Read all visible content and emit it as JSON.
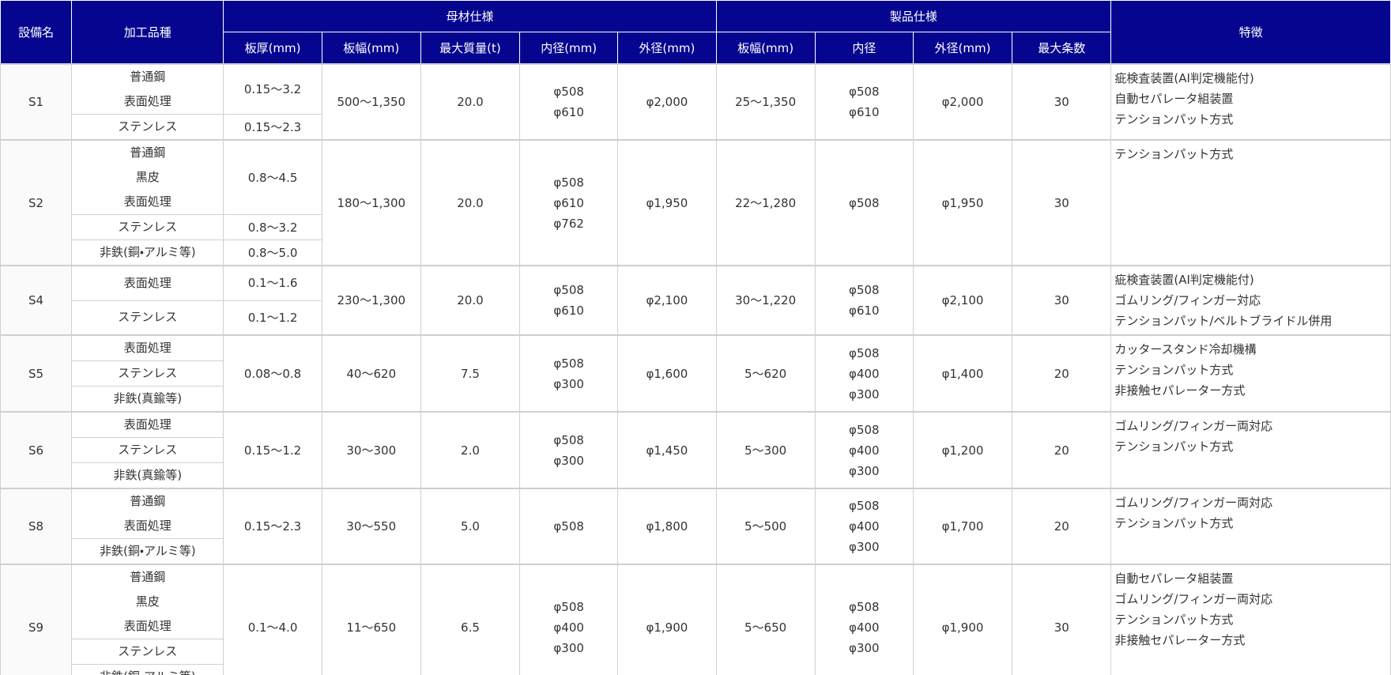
{
  "header": {
    "name": "設備名",
    "kind": "加工品種",
    "base": "母材仕様",
    "features": "特徴",
    "product": "製品仕様",
    "base_cols": [
      "板厚(mm)",
      "板幅(mm)",
      "最大質量(t)",
      "内径(mm)",
      "外径(mm)"
    ],
    "product_cols": [
      "板幅(mm)",
      "内径",
      "外径(mm)",
      "最大条数"
    ]
  },
  "rows": [
    {
      "name": "S1",
      "groups": [
        {
          "thickness": "0.15〜3.2",
          "kinds": [
            [
              "普通鋼",
              "表面処理"
            ]
          ]
        },
        {
          "thickness": "0.15〜2.3",
          "kinds": [
            [
              "ステンレス"
            ]
          ]
        }
      ],
      "width": "500〜1,350",
      "mass": "20.0",
      "inner": [
        "φ508",
        "φ610"
      ],
      "outer": "φ2,000",
      "p_width": "25〜1,350",
      "p_inner": [
        "φ508",
        "φ610"
      ],
      "p_outer": "φ2,000",
      "max": "30",
      "features": [
        "疵検査装置(AI判定機能付)",
        "自動セパレータ組装置",
        "テンションパット方式"
      ]
    },
    {
      "name": "S2",
      "groups": [
        {
          "thickness": "0.8〜4.5",
          "kinds": [
            [
              "普通鋼",
              "黒皮",
              "表面処理"
            ]
          ]
        },
        {
          "thickness": "0.8〜3.2",
          "kinds": [
            [
              "ステンレス"
            ]
          ]
        },
        {
          "thickness": "0.8〜5.0",
          "kinds": [
            [
              "非鉄(銅・アルミ等)"
            ]
          ]
        }
      ],
      "width": "180〜1,300",
      "mass": "20.0",
      "inner": [
        "φ508",
        "φ610",
        "φ762"
      ],
      "outer": "φ1,950",
      "p_width": "22〜1,280",
      "p_inner": [
        "φ508"
      ],
      "p_outer": "φ1,950",
      "max": "30",
      "features": [
        "テンションパット方式"
      ]
    },
    {
      "name": "S4",
      "groups": [
        {
          "thickness": "0.1〜1.6",
          "kinds": [
            [
              "表面処理"
            ]
          ]
        },
        {
          "thickness": "0.1〜1.2",
          "kinds": [
            [
              "ステンレス"
            ]
          ]
        }
      ],
      "width": "230〜1,300",
      "mass": "20.0",
      "inner": [
        "φ508",
        "φ610"
      ],
      "outer": "φ2,100",
      "p_width": "30〜1,220",
      "p_inner": [
        "φ508",
        "φ610"
      ],
      "p_outer": "φ2,100",
      "max": "30",
      "features": [
        "疵検査装置(AI判定機能付)",
        "ゴムリング/フィンガー対応",
        "テンションパット/ベルトブライドル併用"
      ]
    },
    {
      "name": "S5",
      "groups": [
        {
          "thickness": "0.08〜0.8",
          "kinds": [
            [
              "表面処理"
            ],
            [
              "ステンレス"
            ],
            [
              "非鉄(真鍮等)"
            ]
          ]
        }
      ],
      "width": "40〜620",
      "mass": "7.5",
      "inner": [
        "φ508",
        "φ300"
      ],
      "outer": "φ1,600",
      "p_width": "5〜620",
      "p_inner": [
        "φ508",
        "φ400",
        "φ300"
      ],
      "p_outer": "φ1,400",
      "max": "20",
      "features": [
        "カッタースタンド冷却機構",
        "テンションパット方式",
        "非接触セパレーター方式"
      ]
    },
    {
      "name": "S6",
      "groups": [
        {
          "thickness": "0.15〜1.2",
          "kinds": [
            [
              "表面処理"
            ],
            [
              "ステンレス"
            ],
            [
              "非鉄(真鍮等)"
            ]
          ]
        }
      ],
      "width": "30〜300",
      "mass": "2.0",
      "inner": [
        "φ508",
        "φ300"
      ],
      "outer": "φ1,450",
      "p_width": "5〜300",
      "p_inner": [
        "φ508",
        "φ400",
        "φ300"
      ],
      "p_outer": "φ1,200",
      "max": "20",
      "features": [
        "ゴムリング/フィンガー両対応",
        "テンションパット方式"
      ]
    },
    {
      "name": "S8",
      "groups": [
        {
          "thickness": "0.15〜2.3",
          "kinds": [
            [
              "普通鋼",
              "表面処理"
            ],
            [
              "非鉄(銅・アルミ等)"
            ]
          ]
        }
      ],
      "width": "30〜550",
      "mass": "5.0",
      "inner": [
        "φ508"
      ],
      "outer": "φ1,800",
      "p_width": "5〜500",
      "p_inner": [
        "φ508",
        "φ400",
        "φ300"
      ],
      "p_outer": "φ1,700",
      "max": "20",
      "features": [
        "ゴムリング/フィンガー両対応",
        "テンションパット方式"
      ]
    },
    {
      "name": "S9",
      "groups": [
        {
          "thickness": "0.1〜4.0",
          "kinds": [
            [
              "普通鋼",
              "黒皮",
              "表面処理"
            ],
            [
              "ステンレス"
            ],
            [
              "非鉄(銅・アルミ等)"
            ]
          ]
        }
      ],
      "width": "11〜650",
      "mass": "6.5",
      "inner": [
        "φ508",
        "φ400",
        "φ300"
      ],
      "outer": "φ1,900",
      "p_width": "5〜650",
      "p_inner": [
        "φ508",
        "φ400",
        "φ300"
      ],
      "p_outer": "φ1,900",
      "max": "30",
      "features": [
        "自動セパレータ組装置",
        "ゴムリング/フィンガー両対応",
        "テンションパット方式",
        "非接触セパレーター方式"
      ]
    }
  ]
}
